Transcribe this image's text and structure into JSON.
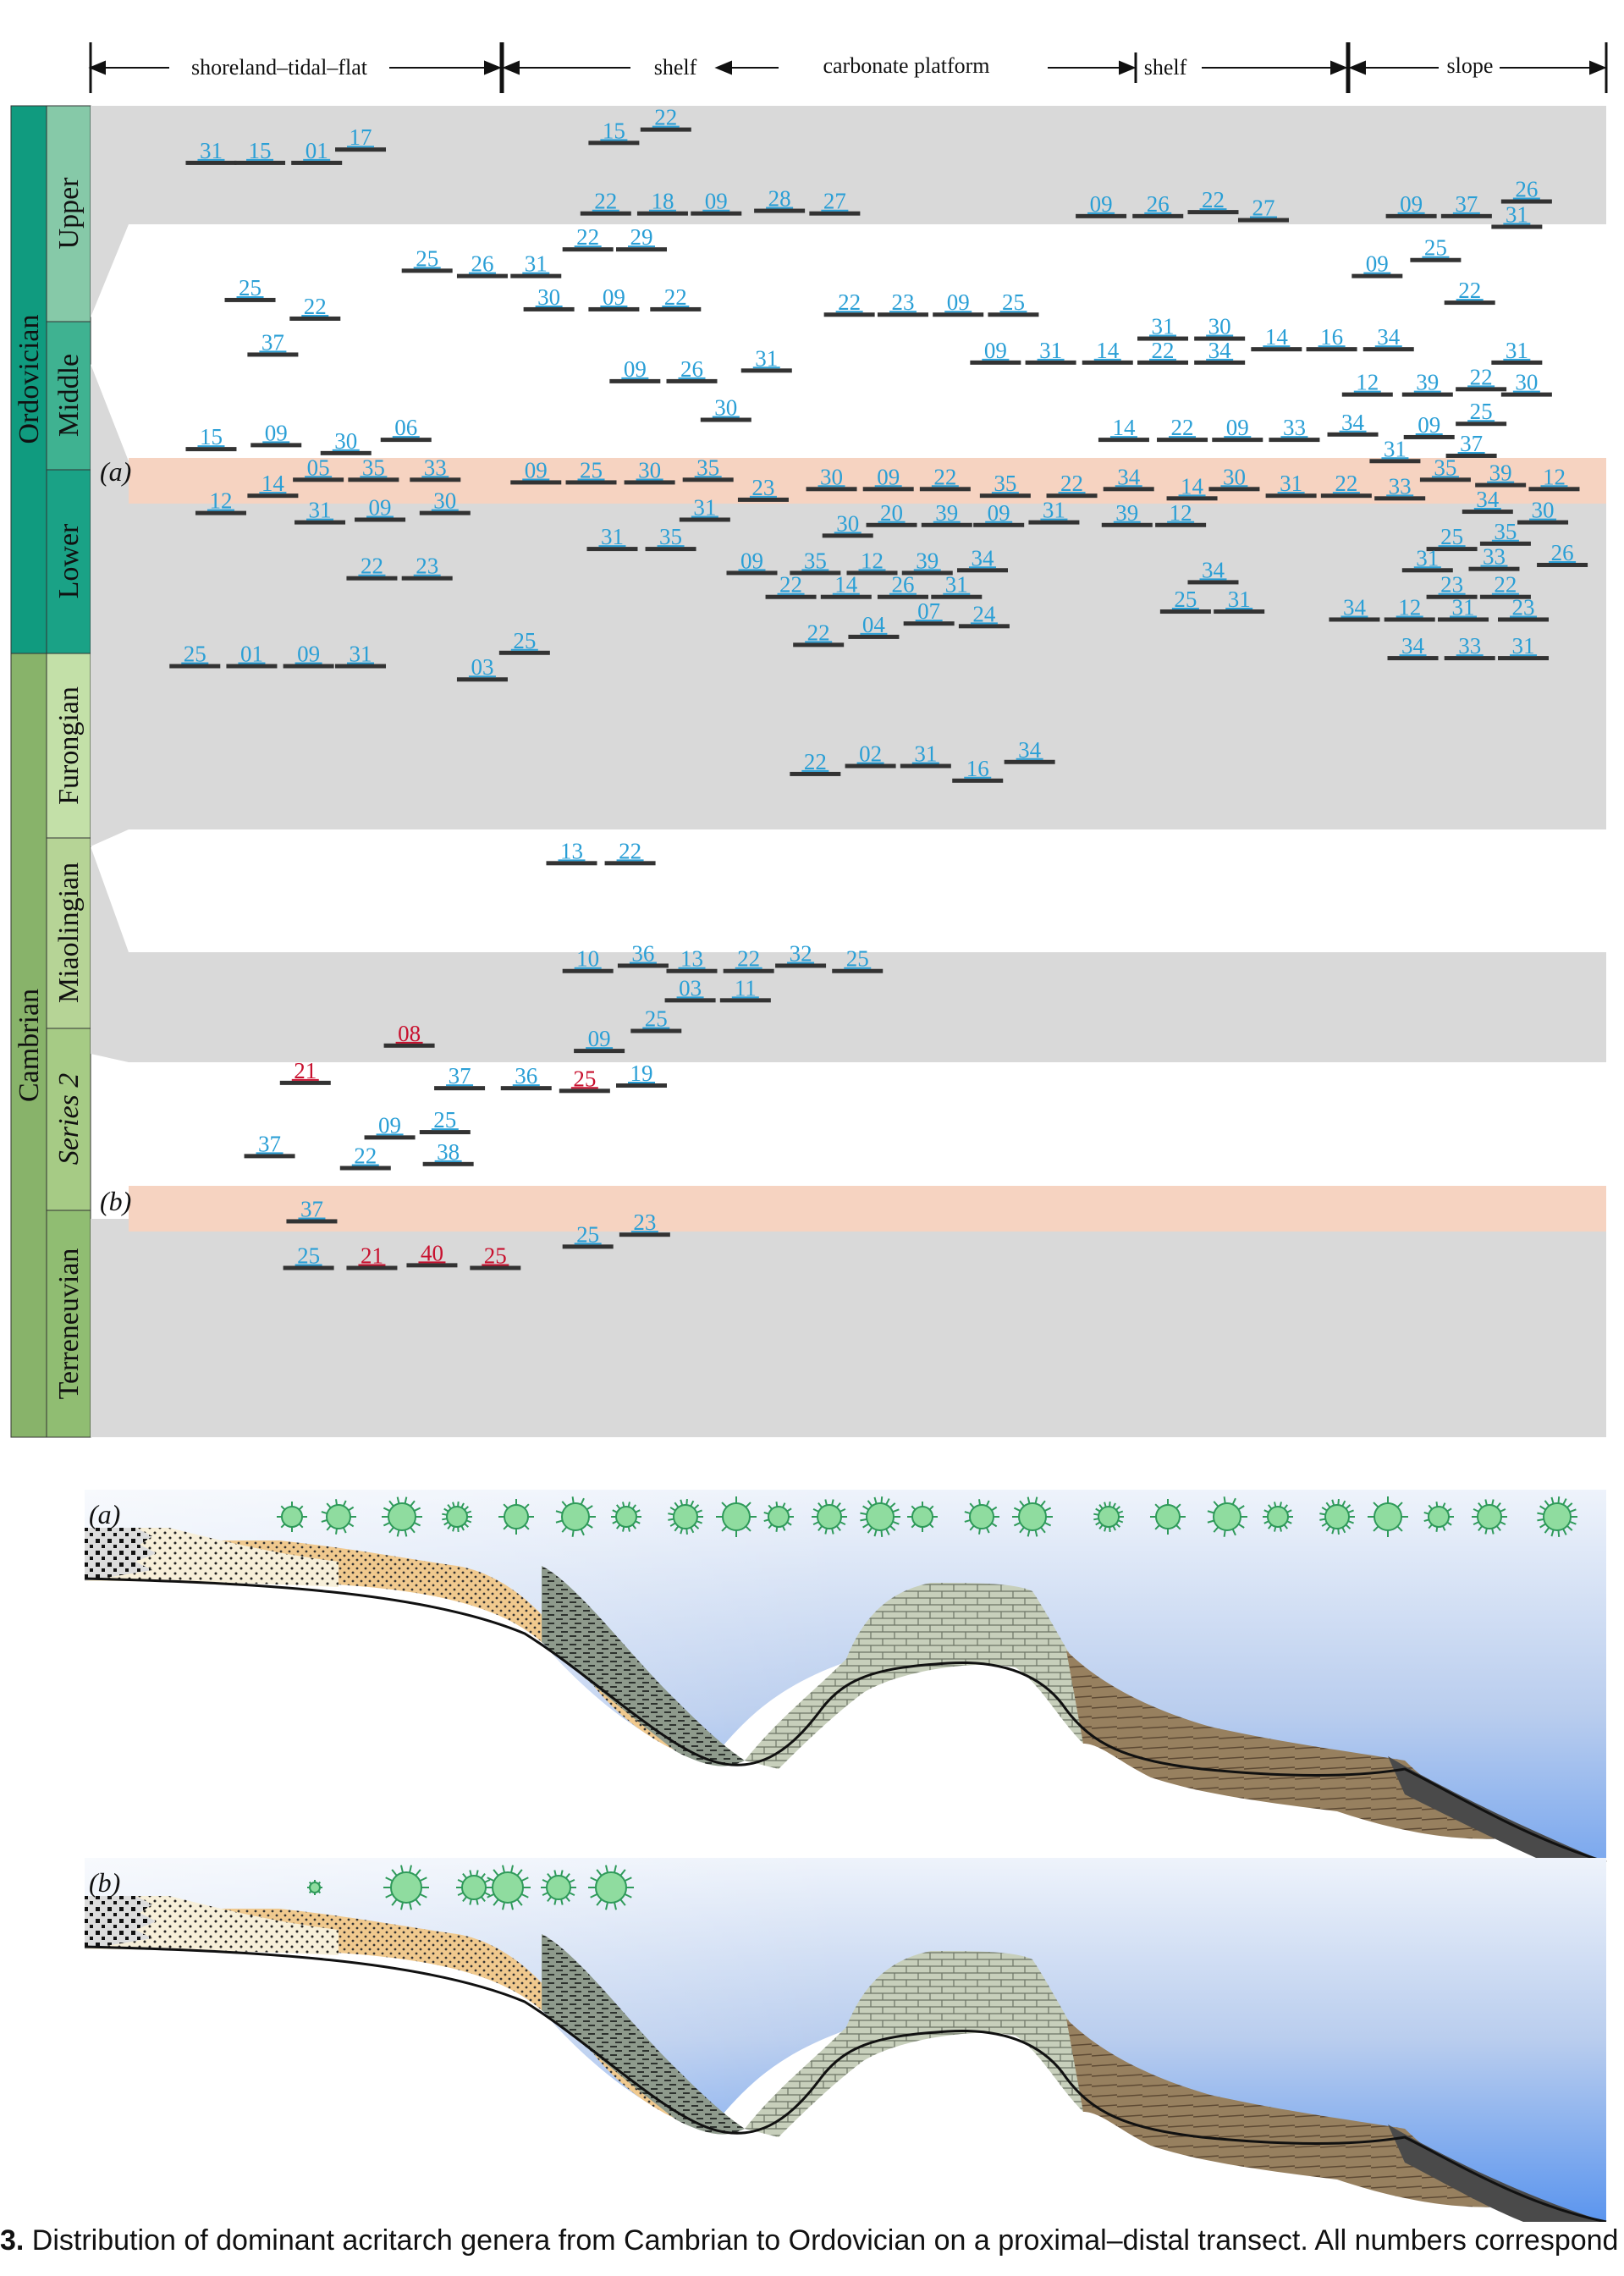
{
  "environments": [
    "shoreland–tidal–flat",
    "shelf",
    "carbonate platform",
    "shelf",
    "slope"
  ],
  "systems": [
    "Ordovician",
    "Cambrian"
  ],
  "series": {
    "ordovician": [
      "Upper",
      "Middle",
      "Lower"
    ],
    "cambrian": [
      "Furongian",
      "Miaolingian",
      "Series 2",
      "Terreneuvian"
    ]
  },
  "event_labels": {
    "a": "(a)",
    "b": "(b)"
  },
  "panel_labels": {
    "a": "(a)",
    "b": "(b)"
  },
  "colors": {
    "blue": "#2a9fd6",
    "red": "#c8102e",
    "band": "#f6d3c1",
    "gray": "#d9d9d9",
    "ordovician": "#0e9a7e",
    "cambrian": "#88b36a"
  },
  "taxa": [
    {
      "n": "31",
      "c": "blue",
      "env": 0.13,
      "age": 0.04
    },
    {
      "n": "15",
      "c": "blue",
      "env": 0.16,
      "age": 0.04
    },
    {
      "n": "01",
      "c": "blue",
      "env": 0.195,
      "age": 0.04
    },
    {
      "n": "17",
      "c": "blue",
      "env": 0.222,
      "age": 0.03
    },
    {
      "n": "15",
      "c": "blue",
      "env": 0.378,
      "age": 0.025
    },
    {
      "n": "22",
      "c": "blue",
      "env": 0.41,
      "age": 0.015
    },
    {
      "n": "22",
      "c": "blue",
      "env": 0.373,
      "age": 0.078
    },
    {
      "n": "18",
      "c": "blue",
      "env": 0.408,
      "age": 0.078
    },
    {
      "n": "09",
      "c": "blue",
      "env": 0.441,
      "age": 0.078
    },
    {
      "n": "28",
      "c": "blue",
      "env": 0.48,
      "age": 0.076
    },
    {
      "n": "27",
      "c": "blue",
      "env": 0.514,
      "age": 0.078
    },
    {
      "n": "09",
      "c": "blue",
      "env": 0.678,
      "age": 0.08
    },
    {
      "n": "26",
      "c": "blue",
      "env": 0.713,
      "age": 0.08
    },
    {
      "n": "22",
      "c": "blue",
      "env": 0.747,
      "age": 0.077
    },
    {
      "n": "27",
      "c": "blue",
      "env": 0.778,
      "age": 0.083
    },
    {
      "n": "09",
      "c": "blue",
      "env": 0.869,
      "age": 0.08
    },
    {
      "n": "37",
      "c": "blue",
      "env": 0.903,
      "age": 0.08
    },
    {
      "n": "26",
      "c": "blue",
      "env": 0.94,
      "age": 0.069
    },
    {
      "n": "31",
      "c": "blue",
      "env": 0.934,
      "age": 0.088
    },
    {
      "n": "25",
      "c": "blue",
      "env": 0.263,
      "age": 0.121
    },
    {
      "n": "26",
      "c": "blue",
      "env": 0.297,
      "age": 0.125
    },
    {
      "n": "31",
      "c": "blue",
      "env": 0.33,
      "age": 0.125
    },
    {
      "n": "22",
      "c": "blue",
      "env": 0.362,
      "age": 0.105
    },
    {
      "n": "29",
      "c": "blue",
      "env": 0.395,
      "age": 0.105
    },
    {
      "n": "09",
      "c": "blue",
      "env": 0.848,
      "age": 0.125
    },
    {
      "n": "25",
      "c": "blue",
      "env": 0.884,
      "age": 0.113
    },
    {
      "n": "22",
      "c": "blue",
      "env": 0.905,
      "age": 0.145
    },
    {
      "n": "25",
      "c": "blue",
      "env": 0.154,
      "age": 0.143
    },
    {
      "n": "22",
      "c": "blue",
      "env": 0.194,
      "age": 0.157
    },
    {
      "n": "30",
      "c": "blue",
      "env": 0.338,
      "age": 0.15
    },
    {
      "n": "09",
      "c": "blue",
      "env": 0.378,
      "age": 0.15
    },
    {
      "n": "22",
      "c": "blue",
      "env": 0.416,
      "age": 0.15
    },
    {
      "n": "22",
      "c": "blue",
      "env": 0.523,
      "age": 0.154
    },
    {
      "n": "23",
      "c": "blue",
      "env": 0.556,
      "age": 0.154
    },
    {
      "n": "09",
      "c": "blue",
      "env": 0.59,
      "age": 0.154
    },
    {
      "n": "25",
      "c": "blue",
      "env": 0.624,
      "age": 0.154
    },
    {
      "n": "37",
      "c": "blue",
      "env": 0.168,
      "age": 0.184
    },
    {
      "n": "31",
      "c": "blue",
      "env": 0.716,
      "age": 0.172
    },
    {
      "n": "30",
      "c": "blue",
      "env": 0.751,
      "age": 0.172
    },
    {
      "n": "14",
      "c": "blue",
      "env": 0.786,
      "age": 0.18
    },
    {
      "n": "16",
      "c": "blue",
      "env": 0.82,
      "age": 0.18
    },
    {
      "n": "34",
      "c": "blue",
      "env": 0.855,
      "age": 0.18
    },
    {
      "n": "09",
      "c": "blue",
      "env": 0.613,
      "age": 0.19
    },
    {
      "n": "31",
      "c": "blue",
      "env": 0.647,
      "age": 0.19
    },
    {
      "n": "14",
      "c": "blue",
      "env": 0.682,
      "age": 0.19
    },
    {
      "n": "22",
      "c": "blue",
      "env": 0.716,
      "age": 0.19
    },
    {
      "n": "34",
      "c": "blue",
      "env": 0.751,
      "age": 0.19
    },
    {
      "n": "31",
      "c": "blue",
      "env": 0.934,
      "age": 0.19
    },
    {
      "n": "12",
      "c": "blue",
      "env": 0.842,
      "age": 0.214
    },
    {
      "n": "39",
      "c": "blue",
      "env": 0.879,
      "age": 0.214
    },
    {
      "n": "22",
      "c": "blue",
      "env": 0.912,
      "age": 0.21
    },
    {
      "n": "30",
      "c": "blue",
      "env": 0.94,
      "age": 0.214
    },
    {
      "n": "09",
      "c": "blue",
      "env": 0.391,
      "age": 0.204
    },
    {
      "n": "26",
      "c": "blue",
      "env": 0.426,
      "age": 0.204
    },
    {
      "n": "31",
      "c": "blue",
      "env": 0.472,
      "age": 0.196
    },
    {
      "n": "30",
      "c": "blue",
      "env": 0.447,
      "age": 0.233
    },
    {
      "n": "25",
      "c": "blue",
      "env": 0.912,
      "age": 0.236
    },
    {
      "n": "09",
      "c": "blue",
      "env": 0.88,
      "age": 0.246
    },
    {
      "n": "37",
      "c": "blue",
      "env": 0.906,
      "age": 0.26
    },
    {
      "n": "14",
      "c": "blue",
      "env": 0.692,
      "age": 0.248
    },
    {
      "n": "22",
      "c": "blue",
      "env": 0.728,
      "age": 0.248
    },
    {
      "n": "09",
      "c": "blue",
      "env": 0.762,
      "age": 0.248
    },
    {
      "n": "33",
      "c": "blue",
      "env": 0.797,
      "age": 0.248
    },
    {
      "n": "34",
      "c": "blue",
      "env": 0.833,
      "age": 0.244
    },
    {
      "n": "15",
      "c": "blue",
      "env": 0.13,
      "age": 0.255
    },
    {
      "n": "09",
      "c": "blue",
      "env": 0.17,
      "age": 0.252
    },
    {
      "n": "30",
      "c": "blue",
      "env": 0.213,
      "age": 0.258
    },
    {
      "n": "06",
      "c": "blue",
      "env": 0.25,
      "age": 0.248
    },
    {
      "n": "31",
      "c": "blue",
      "env": 0.859,
      "age": 0.264
    },
    {
      "n": "05",
      "c": "blue",
      "env": 0.196,
      "age": 0.278
    },
    {
      "n": "35",
      "c": "blue",
      "env": 0.23,
      "age": 0.278
    },
    {
      "n": "33",
      "c": "blue",
      "env": 0.268,
      "age": 0.278
    },
    {
      "n": "09",
      "c": "blue",
      "env": 0.33,
      "age": 0.28
    },
    {
      "n": "25",
      "c": "blue",
      "env": 0.364,
      "age": 0.28
    },
    {
      "n": "30",
      "c": "blue",
      "env": 0.4,
      "age": 0.28
    },
    {
      "n": "35",
      "c": "blue",
      "env": 0.436,
      "age": 0.278
    },
    {
      "n": "35",
      "c": "blue",
      "env": 0.89,
      "age": 0.278
    },
    {
      "n": "39",
      "c": "blue",
      "env": 0.924,
      "age": 0.282
    },
    {
      "n": "12",
      "c": "blue",
      "env": 0.957,
      "age": 0.285
    },
    {
      "n": "14",
      "c": "blue",
      "env": 0.168,
      "age": 0.29
    },
    {
      "n": "12",
      "c": "blue",
      "env": 0.136,
      "age": 0.303
    },
    {
      "n": "23",
      "c": "blue",
      "env": 0.47,
      "age": 0.293
    },
    {
      "n": "30",
      "c": "blue",
      "env": 0.512,
      "age": 0.285
    },
    {
      "n": "09",
      "c": "blue",
      "env": 0.547,
      "age": 0.285
    },
    {
      "n": "22",
      "c": "blue",
      "env": 0.582,
      "age": 0.285
    },
    {
      "n": "35",
      "c": "blue",
      "env": 0.619,
      "age": 0.29
    },
    {
      "n": "22",
      "c": "blue",
      "env": 0.66,
      "age": 0.29
    },
    {
      "n": "34",
      "c": "blue",
      "env": 0.695,
      "age": 0.285
    },
    {
      "n": "14",
      "c": "blue",
      "env": 0.734,
      "age": 0.292
    },
    {
      "n": "30",
      "c": "blue",
      "env": 0.76,
      "age": 0.285
    },
    {
      "n": "31",
      "c": "blue",
      "env": 0.795,
      "age": 0.29
    },
    {
      "n": "22",
      "c": "blue",
      "env": 0.829,
      "age": 0.29
    },
    {
      "n": "33",
      "c": "blue",
      "env": 0.862,
      "age": 0.292
    },
    {
      "n": "31",
      "c": "blue",
      "env": 0.197,
      "age": 0.31
    },
    {
      "n": "09",
      "c": "blue",
      "env": 0.234,
      "age": 0.308
    },
    {
      "n": "30",
      "c": "blue",
      "env": 0.274,
      "age": 0.303
    },
    {
      "n": "31",
      "c": "blue",
      "env": 0.434,
      "age": 0.308
    },
    {
      "n": "34",
      "c": "blue",
      "env": 0.916,
      "age": 0.302
    },
    {
      "n": "30",
      "c": "blue",
      "env": 0.95,
      "age": 0.31
    },
    {
      "n": "30",
      "c": "blue",
      "env": 0.522,
      "age": 0.32
    },
    {
      "n": "20",
      "c": "blue",
      "env": 0.549,
      "age": 0.312
    },
    {
      "n": "39",
      "c": "blue",
      "env": 0.583,
      "age": 0.312
    },
    {
      "n": "09",
      "c": "blue",
      "env": 0.615,
      "age": 0.312
    },
    {
      "n": "31",
      "c": "blue",
      "env": 0.649,
      "age": 0.31
    },
    {
      "n": "39",
      "c": "blue",
      "env": 0.694,
      "age": 0.312
    },
    {
      "n": "12",
      "c": "blue",
      "env": 0.727,
      "age": 0.312
    },
    {
      "n": "31",
      "c": "blue",
      "env": 0.377,
      "age": 0.33
    },
    {
      "n": "35",
      "c": "blue",
      "env": 0.413,
      "age": 0.33
    },
    {
      "n": "25",
      "c": "blue",
      "env": 0.894,
      "age": 0.33
    },
    {
      "n": "35",
      "c": "blue",
      "env": 0.927,
      "age": 0.326
    },
    {
      "n": "22",
      "c": "blue",
      "env": 0.229,
      "age": 0.352
    },
    {
      "n": "23",
      "c": "blue",
      "env": 0.263,
      "age": 0.352
    },
    {
      "n": "31",
      "c": "blue",
      "env": 0.879,
      "age": 0.346
    },
    {
      "n": "33",
      "c": "blue",
      "env": 0.92,
      "age": 0.345
    },
    {
      "n": "26",
      "c": "blue",
      "env": 0.962,
      "age": 0.342
    },
    {
      "n": "09",
      "c": "blue",
      "env": 0.463,
      "age": 0.348
    },
    {
      "n": "35",
      "c": "blue",
      "env": 0.502,
      "age": 0.348
    },
    {
      "n": "12",
      "c": "blue",
      "env": 0.537,
      "age": 0.348
    },
    {
      "n": "39",
      "c": "blue",
      "env": 0.571,
      "age": 0.348
    },
    {
      "n": "34",
      "c": "blue",
      "env": 0.605,
      "age": 0.346
    },
    {
      "n": "34",
      "c": "blue",
      "env": 0.747,
      "age": 0.355
    },
    {
      "n": "22",
      "c": "blue",
      "env": 0.487,
      "age": 0.366
    },
    {
      "n": "14",
      "c": "blue",
      "env": 0.521,
      "age": 0.366
    },
    {
      "n": "26",
      "c": "blue",
      "env": 0.556,
      "age": 0.366
    },
    {
      "n": "31",
      "c": "blue",
      "env": 0.589,
      "age": 0.366
    },
    {
      "n": "23",
      "c": "blue",
      "env": 0.894,
      "age": 0.366
    },
    {
      "n": "22",
      "c": "blue",
      "env": 0.927,
      "age": 0.366
    },
    {
      "n": "25",
      "c": "blue",
      "env": 0.73,
      "age": 0.377
    },
    {
      "n": "31",
      "c": "blue",
      "env": 0.763,
      "age": 0.377
    },
    {
      "n": "34",
      "c": "blue",
      "env": 0.834,
      "age": 0.383
    },
    {
      "n": "12",
      "c": "blue",
      "env": 0.868,
      "age": 0.383
    },
    {
      "n": "31",
      "c": "blue",
      "env": 0.901,
      "age": 0.383
    },
    {
      "n": "23",
      "c": "blue",
      "env": 0.938,
      "age": 0.383
    },
    {
      "n": "07",
      "c": "blue",
      "env": 0.572,
      "age": 0.386
    },
    {
      "n": "24",
      "c": "blue",
      "env": 0.606,
      "age": 0.388
    },
    {
      "n": "22",
      "c": "blue",
      "env": 0.504,
      "age": 0.402
    },
    {
      "n": "04",
      "c": "blue",
      "env": 0.538,
      "age": 0.396
    },
    {
      "n": "34",
      "c": "blue",
      "env": 0.87,
      "age": 0.412
    },
    {
      "n": "33",
      "c": "blue",
      "env": 0.905,
      "age": 0.412
    },
    {
      "n": "31",
      "c": "blue",
      "env": 0.938,
      "age": 0.412
    },
    {
      "n": "25",
      "c": "blue",
      "env": 0.12,
      "age": 0.418
    },
    {
      "n": "01",
      "c": "blue",
      "env": 0.155,
      "age": 0.418
    },
    {
      "n": "09",
      "c": "blue",
      "env": 0.19,
      "age": 0.418
    },
    {
      "n": "31",
      "c": "blue",
      "env": 0.222,
      "age": 0.418
    },
    {
      "n": "25",
      "c": "blue",
      "env": 0.323,
      "age": 0.408
    },
    {
      "n": "03",
      "c": "blue",
      "env": 0.297,
      "age": 0.428
    },
    {
      "n": "22",
      "c": "blue",
      "env": 0.502,
      "age": 0.499
    },
    {
      "n": "02",
      "c": "blue",
      "env": 0.536,
      "age": 0.493
    },
    {
      "n": "31",
      "c": "blue",
      "env": 0.57,
      "age": 0.493
    },
    {
      "n": "16",
      "c": "blue",
      "env": 0.602,
      "age": 0.504
    },
    {
      "n": "34",
      "c": "blue",
      "env": 0.634,
      "age": 0.49
    },
    {
      "n": "13",
      "c": "blue",
      "env": 0.352,
      "age": 0.566
    },
    {
      "n": "22",
      "c": "blue",
      "env": 0.388,
      "age": 0.566
    },
    {
      "n": "10",
      "c": "blue",
      "env": 0.362,
      "age": 0.647
    },
    {
      "n": "36",
      "c": "blue",
      "env": 0.396,
      "age": 0.643
    },
    {
      "n": "13",
      "c": "blue",
      "env": 0.426,
      "age": 0.647
    },
    {
      "n": "22",
      "c": "blue",
      "env": 0.461,
      "age": 0.647
    },
    {
      "n": "32",
      "c": "blue",
      "env": 0.493,
      "age": 0.643
    },
    {
      "n": "25",
      "c": "blue",
      "env": 0.528,
      "age": 0.647
    },
    {
      "n": "03",
      "c": "blue",
      "env": 0.425,
      "age": 0.669
    },
    {
      "n": "11",
      "c": "blue",
      "env": 0.459,
      "age": 0.669
    },
    {
      "n": "25",
      "c": "blue",
      "env": 0.404,
      "age": 0.692
    },
    {
      "n": "08",
      "c": "red",
      "env": 0.252,
      "age": 0.703
    },
    {
      "n": "09",
      "c": "blue",
      "env": 0.369,
      "age": 0.707
    },
    {
      "n": "21",
      "c": "red",
      "env": 0.188,
      "age": 0.731
    },
    {
      "n": "37",
      "c": "blue",
      "env": 0.283,
      "age": 0.735
    },
    {
      "n": "36",
      "c": "blue",
      "env": 0.324,
      "age": 0.735
    },
    {
      "n": "25",
      "c": "red",
      "env": 0.36,
      "age": 0.737
    },
    {
      "n": "19",
      "c": "blue",
      "env": 0.395,
      "age": 0.733
    },
    {
      "n": "09",
      "c": "blue",
      "env": 0.24,
      "age": 0.772
    },
    {
      "n": "25",
      "c": "blue",
      "env": 0.274,
      "age": 0.768
    },
    {
      "n": "37",
      "c": "blue",
      "env": 0.166,
      "age": 0.786
    },
    {
      "n": "22",
      "c": "blue",
      "env": 0.225,
      "age": 0.795
    },
    {
      "n": "38",
      "c": "blue",
      "env": 0.276,
      "age": 0.792
    },
    {
      "n": "37",
      "c": "blue",
      "env": 0.192,
      "age": 0.835
    },
    {
      "n": "25",
      "c": "blue",
      "env": 0.362,
      "age": 0.854
    },
    {
      "n": "23",
      "c": "blue",
      "env": 0.397,
      "age": 0.845
    },
    {
      "n": "25",
      "c": "blue",
      "env": 0.19,
      "age": 0.87
    },
    {
      "n": "21",
      "c": "red",
      "env": 0.229,
      "age": 0.87
    },
    {
      "n": "40",
      "c": "red",
      "env": 0.266,
      "age": 0.868
    },
    {
      "n": "25",
      "c": "red",
      "env": 0.305,
      "age": 0.87
    }
  ],
  "caption": {
    "figure": "3.",
    "text": " Distribution of dominant acritarch genera from Cambrian to Ordovician on a proximal–distal transect. All numbers correspond to the taxa in figure"
  }
}
